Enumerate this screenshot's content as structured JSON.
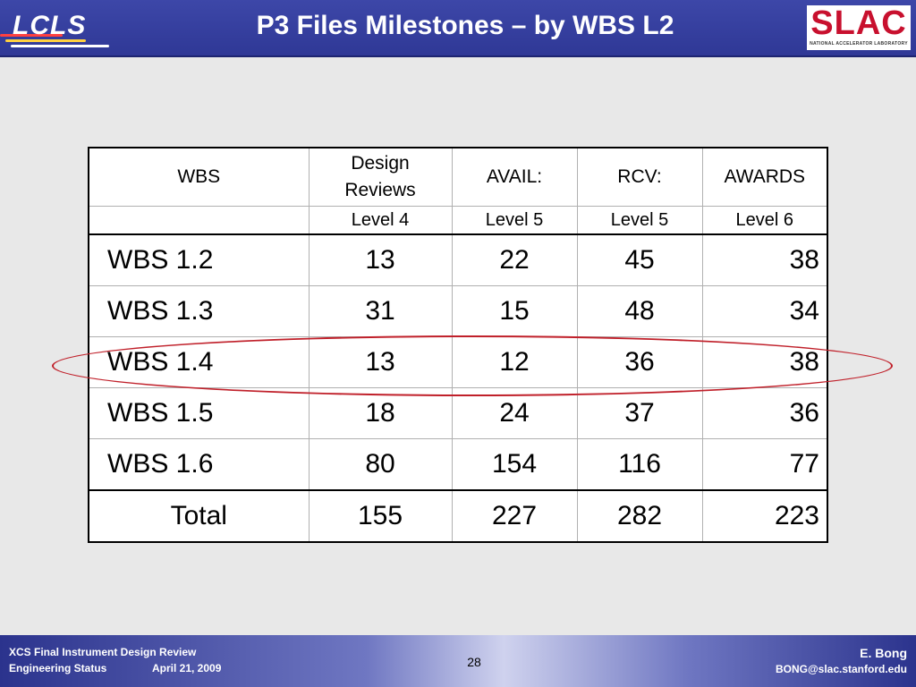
{
  "header": {
    "title": "P3 Files Milestones – by WBS L2",
    "logo_left": "LCLS",
    "logo_right": "SLAC",
    "logo_right_sub": "NATIONAL ACCELERATOR LABORATORY",
    "colors": {
      "header_bg": "#3d47a8",
      "slac_red": "#c8102e",
      "highlight": "#c0202a"
    }
  },
  "table": {
    "headers": [
      "WBS",
      "Design Reviews",
      "AVAIL:",
      "RCV:",
      "AWARDS"
    ],
    "header_design_line1": "Design",
    "header_design_line2": "Reviews",
    "levels": [
      "",
      "Level 4",
      "Level 5",
      "Level 5",
      "Level 6"
    ],
    "rows": [
      {
        "name": "WBS 1.2",
        "design": "13",
        "avail": "22",
        "rcv": "45",
        "awards": "38"
      },
      {
        "name": "WBS 1.3",
        "design": "31",
        "avail": "15",
        "rcv": "48",
        "awards": "34"
      },
      {
        "name": "WBS 1.4",
        "design": "13",
        "avail": "12",
        "rcv": "36",
        "awards": "38"
      },
      {
        "name": "WBS 1.5",
        "design": "18",
        "avail": "24",
        "rcv": "37",
        "awards": "36"
      },
      {
        "name": "WBS 1.6",
        "design": "80",
        "avail": "154",
        "rcv": "116",
        "awards": "77"
      }
    ],
    "total": {
      "name": "Total",
      "design": "155",
      "avail": "227",
      "rcv": "282",
      "awards": "223"
    },
    "highlighted_row": "WBS 1.4"
  },
  "footer": {
    "left_line1": "XCS Final Instrument Design Review",
    "left_line2": "Engineering Status",
    "date": "April 21, 2009",
    "page_number": "28",
    "author": "E. Bong",
    "email": "BONG@slac.stanford.edu"
  }
}
